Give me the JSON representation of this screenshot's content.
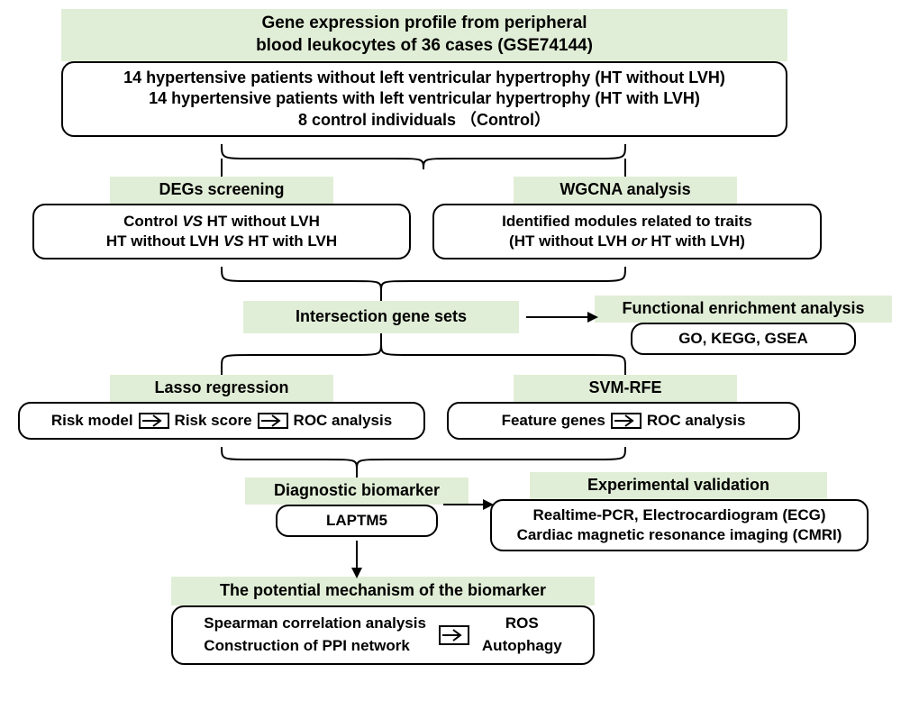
{
  "style": {
    "header_bg": "#e1eed7",
    "body_bg": "#ffffff",
    "body_border": "#000000",
    "body_border_width": 2,
    "body_radius": 14,
    "font_size_large": 19,
    "font_size_med": 18,
    "font_size_small": 17,
    "brace_color": "#000000",
    "brace_width": 2,
    "arrow_color": "#000000"
  },
  "blocks": {
    "top": {
      "header": [
        "Gene expression profile from peripheral",
        "blood leukocytes of 36 cases (GSE74144)"
      ],
      "body": [
        "14 hypertensive patients without  left ventricular hypertrophy (HT without LVH)",
        "14 hypertensive patients with  left ventricular hypertrophy (HT with LVH)",
        "8 control individuals （Control）"
      ]
    },
    "degs": {
      "header": "DEGs screening",
      "body": [
        "Control VS HT without LVH",
        "HT without LVH VS HT with LVH"
      ]
    },
    "wgcna": {
      "header": "WGCNA analysis",
      "body": [
        "Identified modules related to traits",
        "(HT without LVH or HT with LVH)"
      ]
    },
    "intersection": {
      "header": "Intersection gene sets"
    },
    "func": {
      "header": "Functional enrichment analysis",
      "body": [
        "GO, KEGG, GSEA"
      ]
    },
    "lasso": {
      "header": "Lasso regression",
      "items": [
        "Risk model",
        "Risk score",
        "ROC analysis"
      ]
    },
    "svm": {
      "header": "SVM-RFE",
      "items": [
        "Feature genes",
        "ROC analysis"
      ]
    },
    "biomarker": {
      "header": "Diagnostic biomarker",
      "body": [
        "LAPTM5"
      ]
    },
    "validation": {
      "header": "Experimental validation",
      "body": [
        "Realtime-PCR, Electrocardiogram (ECG)",
        "Cardiac magnetic resonance imaging (CMRI)"
      ]
    },
    "mechanism": {
      "header": "The potential mechanism of the biomarker",
      "left": [
        "Spearman correlation analysis",
        "Construction of PPI network"
      ],
      "right": [
        "ROS",
        "Autophagy"
      ]
    }
  }
}
